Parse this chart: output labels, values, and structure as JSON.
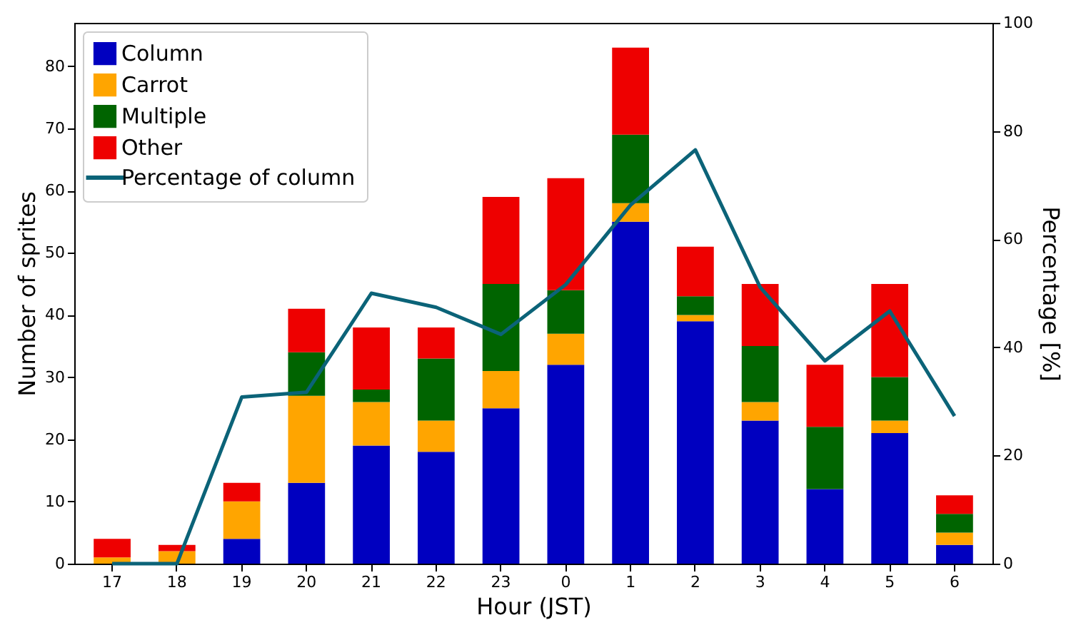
{
  "chart_data": {
    "type": "bar",
    "stacked": true,
    "xlabel": "Hour (JST)",
    "ylabel": "Number of sprites",
    "y2label": "Percentage [%]",
    "categories": [
      "17",
      "18",
      "19",
      "20",
      "21",
      "22",
      "23",
      "0",
      "1",
      "2",
      "3",
      "4",
      "5",
      "6"
    ],
    "series": [
      {
        "name": "Column",
        "color": "#0000c0",
        "values": [
          0,
          0,
          4,
          13,
          19,
          18,
          25,
          32,
          55,
          39,
          23,
          12,
          21,
          3
        ]
      },
      {
        "name": "Carrot",
        "color": "#ffa500",
        "values": [
          1,
          2,
          6,
          14,
          7,
          5,
          6,
          5,
          3,
          1,
          3,
          0,
          2,
          2
        ]
      },
      {
        "name": "Multiple",
        "color": "#006400",
        "values": [
          0,
          0,
          0,
          7,
          2,
          10,
          14,
          7,
          11,
          3,
          9,
          10,
          7,
          3
        ]
      },
      {
        "name": "Other",
        "color": "#ee0000",
        "values": [
          3,
          1,
          3,
          7,
          10,
          5,
          14,
          18,
          14,
          8,
          10,
          10,
          15,
          3
        ]
      },
      {
        "name": "Percentage of column",
        "color": "#0b6378",
        "type": "line",
        "axis": "y2",
        "values": [
          0,
          0,
          30.8,
          31.7,
          50,
          47.4,
          42.4,
          51.6,
          66.3,
          76.5,
          51.1,
          37.5,
          46.7,
          27.3
        ]
      }
    ],
    "ylim": [
      0,
      87
    ],
    "yticks": [
      0,
      10,
      20,
      30,
      40,
      50,
      60,
      70,
      80
    ],
    "y2lim": [
      0,
      100
    ],
    "y2ticks": [
      0,
      20,
      40,
      60,
      80,
      100
    ],
    "grid": false,
    "legend": "top left"
  }
}
